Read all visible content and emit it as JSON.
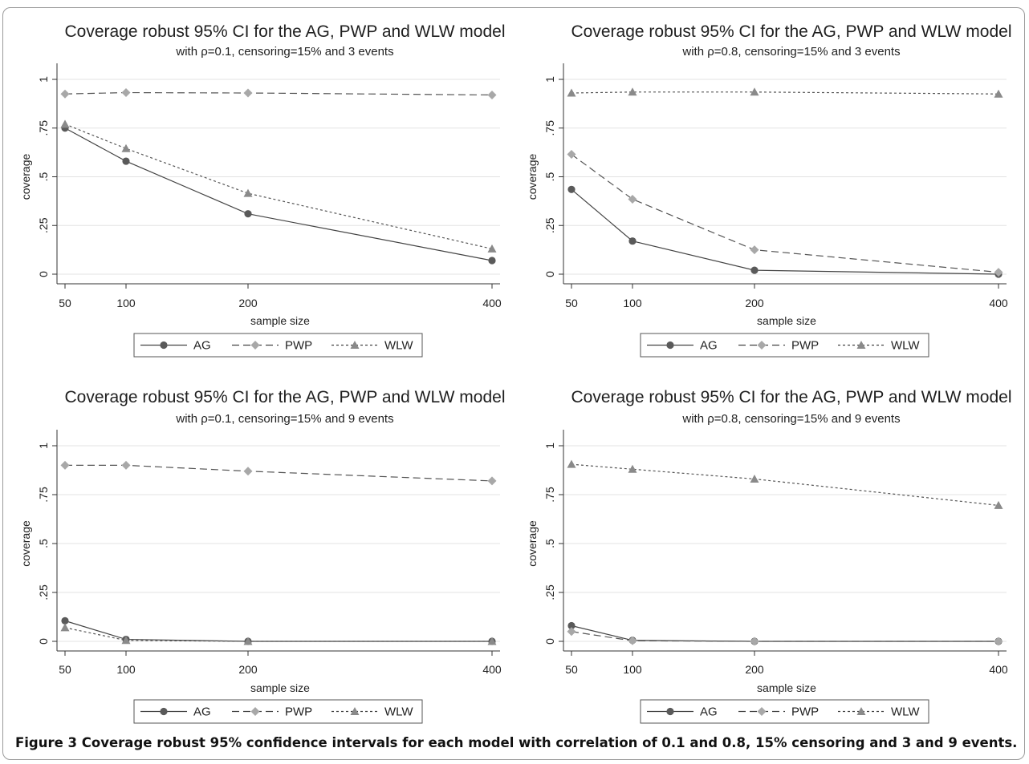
{
  "caption": "Figure 3 Coverage robust 95% confidence intervals for each model with correlation of 0.1 and 0.8, 15% censoring and 3 and 9 events.",
  "chart_data": [
    {
      "type": "line",
      "title": "Coverage robust 95% CI for the AG, PWP and WLW model",
      "subtitle": "with ρ=0.1, censoring=15% and 3 events",
      "xlabel": "sample size",
      "ylabel": "coverage",
      "x": [
        50,
        100,
        200,
        400
      ],
      "xticks": [
        "50",
        "100",
        "200",
        "400"
      ],
      "yticks": [
        {
          "v": 0,
          "t": "0"
        },
        {
          "v": 0.25,
          "t": ".25"
        },
        {
          "v": 0.5,
          "t": ".5"
        },
        {
          "v": 0.75,
          "t": ".75"
        },
        {
          "v": 1,
          "t": "1"
        }
      ],
      "xlim": [
        50,
        400
      ],
      "ylim": [
        0,
        1
      ],
      "grid": true,
      "legend": "bottom",
      "series": [
        {
          "name": "AG",
          "values": [
            0.75,
            0.58,
            0.31,
            0.07
          ],
          "color": "#5a5a5a",
          "marker": "circle",
          "dash": "solid"
        },
        {
          "name": "PWP",
          "values": [
            0.925,
            0.932,
            0.93,
            0.92
          ],
          "color": "#a8a8a8",
          "marker": "diamond",
          "dash": "dashed"
        },
        {
          "name": "WLW",
          "values": [
            0.77,
            0.645,
            0.415,
            0.13
          ],
          "color": "#8a8a8a",
          "marker": "triangle",
          "dash": "dotted"
        }
      ]
    },
    {
      "type": "line",
      "title": "Coverage robust 95% CI for the AG, PWP and WLW model",
      "subtitle": "with ρ=0.8, censoring=15% and 3 events",
      "xlabel": "sample size",
      "ylabel": "coverage",
      "x": [
        50,
        100,
        200,
        400
      ],
      "xticks": [
        "50",
        "100",
        "200",
        "400"
      ],
      "yticks": [
        {
          "v": 0,
          "t": "0"
        },
        {
          "v": 0.25,
          "t": ".25"
        },
        {
          "v": 0.5,
          "t": ".5"
        },
        {
          "v": 0.75,
          "t": ".75"
        },
        {
          "v": 1,
          "t": "1"
        }
      ],
      "xlim": [
        50,
        400
      ],
      "ylim": [
        0,
        1
      ],
      "grid": true,
      "legend": "bottom",
      "series": [
        {
          "name": "AG",
          "values": [
            0.435,
            0.17,
            0.02,
            0.0
          ],
          "color": "#5a5a5a",
          "marker": "circle",
          "dash": "solid"
        },
        {
          "name": "PWP",
          "values": [
            0.615,
            0.385,
            0.125,
            0.01
          ],
          "color": "#a8a8a8",
          "marker": "diamond",
          "dash": "dashed"
        },
        {
          "name": "WLW",
          "values": [
            0.93,
            0.935,
            0.935,
            0.925
          ],
          "color": "#8a8a8a",
          "marker": "triangle",
          "dash": "dotted"
        }
      ]
    },
    {
      "type": "line",
      "title": "Coverage robust 95% CI for the AG, PWP and WLW model",
      "subtitle": "with ρ=0.1, censoring=15% and 9 events",
      "xlabel": "sample size",
      "ylabel": "coverage",
      "x": [
        50,
        100,
        200,
        400
      ],
      "xticks": [
        "50",
        "100",
        "200",
        "400"
      ],
      "yticks": [
        {
          "v": 0,
          "t": "0"
        },
        {
          "v": 0.25,
          "t": ".25"
        },
        {
          "v": 0.5,
          "t": ".5"
        },
        {
          "v": 0.75,
          "t": ".75"
        },
        {
          "v": 1,
          "t": "1"
        }
      ],
      "xlim": [
        50,
        400
      ],
      "ylim": [
        0,
        1
      ],
      "grid": true,
      "legend": "bottom",
      "series": [
        {
          "name": "AG",
          "values": [
            0.105,
            0.01,
            0.0,
            0.0
          ],
          "color": "#5a5a5a",
          "marker": "circle",
          "dash": "solid"
        },
        {
          "name": "PWP",
          "values": [
            0.9,
            0.9,
            0.87,
            0.82
          ],
          "color": "#a8a8a8",
          "marker": "diamond",
          "dash": "dashed"
        },
        {
          "name": "WLW",
          "values": [
            0.07,
            0.005,
            0.0,
            0.0
          ],
          "color": "#8a8a8a",
          "marker": "triangle",
          "dash": "dotted"
        }
      ]
    },
    {
      "type": "line",
      "title": "Coverage robust 95% CI for the AG, PWP and WLW model",
      "subtitle": "with ρ=0.8, censoring=15% and 9 events",
      "xlabel": "sample size",
      "ylabel": "coverage",
      "x": [
        50,
        100,
        200,
        400
      ],
      "xticks": [
        "50",
        "100",
        "200",
        "400"
      ],
      "yticks": [
        {
          "v": 0,
          "t": "0"
        },
        {
          "v": 0.25,
          "t": ".25"
        },
        {
          "v": 0.5,
          "t": ".5"
        },
        {
          "v": 0.75,
          "t": ".75"
        },
        {
          "v": 1,
          "t": "1"
        }
      ],
      "xlim": [
        50,
        400
      ],
      "ylim": [
        0,
        1
      ],
      "grid": true,
      "legend": "bottom",
      "series": [
        {
          "name": "AG",
          "values": [
            0.08,
            0.005,
            0.0,
            0.0
          ],
          "color": "#5a5a5a",
          "marker": "circle",
          "dash": "solid"
        },
        {
          "name": "PWP",
          "values": [
            0.05,
            0.003,
            0.0,
            0.0
          ],
          "color": "#a8a8a8",
          "marker": "diamond",
          "dash": "dashed"
        },
        {
          "name": "WLW",
          "values": [
            0.905,
            0.88,
            0.83,
            0.695
          ],
          "color": "#8a8a8a",
          "marker": "triangle",
          "dash": "dotted"
        }
      ]
    }
  ]
}
